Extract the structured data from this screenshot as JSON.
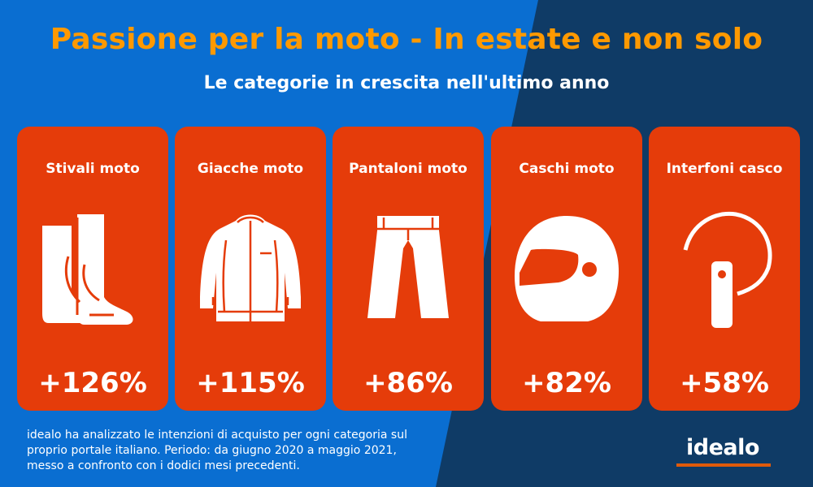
{
  "colors": {
    "bg_left": "#0a6ed1",
    "bg_right": "#0f3b66",
    "title": "#ff9900",
    "card": "#e53c0a",
    "logo_accent": "#e05a0a"
  },
  "header": {
    "title": "Passione per la moto - In estate e non solo",
    "subtitle": "Le categorie in crescita nell'ultimo anno"
  },
  "categories": [
    {
      "label": "Stivali moto",
      "value": "+126%",
      "icon": "boots-icon"
    },
    {
      "label": "Giacche moto",
      "value": "+115%",
      "icon": "jacket-icon"
    },
    {
      "label": "Pantaloni moto",
      "value": "+86%",
      "icon": "pants-icon"
    },
    {
      "label": "Caschi moto",
      "value": "+82%",
      "icon": "helmet-icon"
    },
    {
      "label": "Interfoni casco",
      "value": "+58%",
      "icon": "intercom-icon"
    }
  ],
  "footer": {
    "note": "idealo ha analizzato le intenzioni di acquisto per ogni categoria sul proprio portale italiano. Periodo: da giugno 2020 a maggio 2021, messo a confronto con i dodici mesi precedenti.",
    "logo": "idealo"
  }
}
